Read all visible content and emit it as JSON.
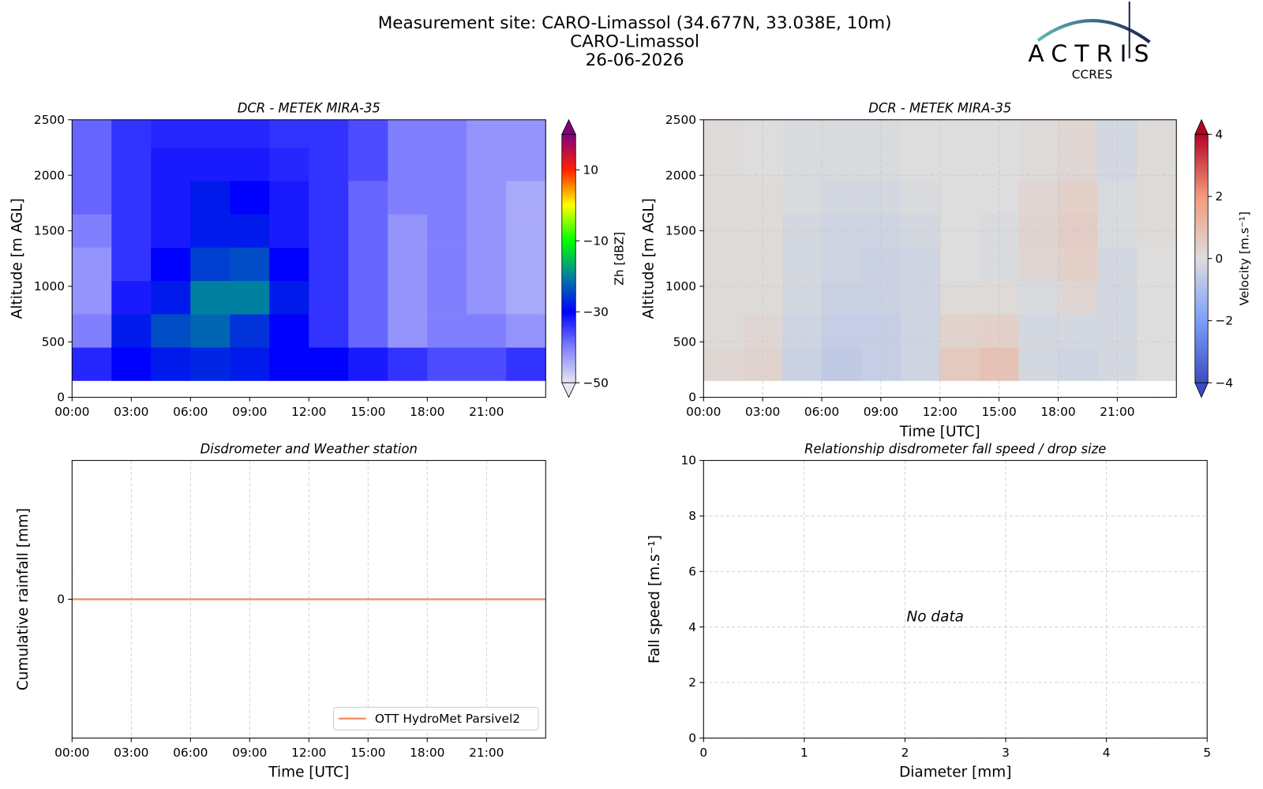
{
  "header": {
    "title_lines": [
      "Measurement site: CARO-Limassol (34.677N, 33.038E, 10m)",
      "CARO-Limassol",
      "26-06-2026"
    ],
    "logo": "ACTRIS",
    "logo_subtitle": "CCRES"
  },
  "chart_data": [
    {
      "type": "heatmap",
      "title": "DCR - METEK MIRA-35",
      "y_label": "Altitude [m AGL]",
      "colorbar_label": "Zh [dBZ]",
      "x_bins": [
        0,
        2,
        4,
        6,
        8,
        10,
        12,
        14,
        16,
        18,
        20,
        22,
        24
      ],
      "y_bins": [
        150,
        450,
        750,
        1050,
        1350,
        1650,
        1950,
        2250,
        2500
      ],
      "values": [
        [
          -33,
          -30,
          -28,
          -27,
          -28,
          -30,
          -30,
          -32,
          -34,
          -36,
          -36,
          -34
        ],
        [
          -40,
          -28,
          -24,
          -22,
          -26,
          -30,
          -34,
          -38,
          -42,
          -40,
          -40,
          -42
        ],
        [
          -42,
          -32,
          -28,
          -20,
          -20,
          -28,
          -34,
          -38,
          -42,
          -40,
          -42,
          -44
        ],
        [
          -42,
          -34,
          -30,
          -25,
          -24,
          -30,
          -34,
          -38,
          -42,
          -40,
          -42,
          -44
        ],
        [
          -40,
          -34,
          -32,
          -28,
          -28,
          -32,
          -34,
          -38,
          -42,
          -40,
          -42,
          -44
        ],
        [
          -38,
          -34,
          -32,
          -28,
          -30,
          -32,
          -34,
          -38,
          -40,
          -40,
          -42,
          -44
        ],
        [
          -38,
          -34,
          -32,
          -32,
          -32,
          -33,
          -34,
          -36,
          -40,
          -40,
          -42,
          -42
        ],
        [
          -38,
          -34,
          -33,
          -33,
          -33,
          -34,
          -34,
          -36,
          -40,
          -40,
          -42,
          -42
        ]
      ],
      "xlim": [
        0,
        24
      ],
      "ylim": [
        0,
        2500
      ],
      "xticks": [
        {
          "value": 0,
          "label": "00:00"
        },
        {
          "value": 3,
          "label": "03:00"
        },
        {
          "value": 6,
          "label": "06:00"
        },
        {
          "value": 9,
          "label": "09:00"
        },
        {
          "value": 12,
          "label": "12:00"
        },
        {
          "value": 15,
          "label": "15:00"
        },
        {
          "value": 18,
          "label": "18:00"
        },
        {
          "value": 21,
          "label": "21:00"
        }
      ],
      "yticks": [
        0,
        500,
        1000,
        1500,
        2000,
        2500
      ],
      "zlim": [
        -50,
        20
      ],
      "zticks": [
        {
          "value": -50,
          "label": "−50"
        },
        {
          "value": -30,
          "label": "−30"
        },
        {
          "value": -10,
          "label": "−10"
        },
        10
      ],
      "colormap": [
        "#e6e6f0",
        "#8080ff",
        "#0000ff",
        "#0080a0",
        "#00ff00",
        "#ffff00",
        "#ff2000",
        "#800080"
      ],
      "grid": false
    },
    {
      "type": "heatmap",
      "title": "DCR - METEK MIRA-35",
      "x_label": "Time [UTC]",
      "y_label": "Altitude [m AGL]",
      "colorbar_label": "Velocity [m.s⁻¹]",
      "x_bins": [
        0,
        2,
        4,
        6,
        8,
        10,
        12,
        14,
        16,
        18,
        20,
        22,
        24
      ],
      "y_bins": [
        150,
        450,
        750,
        1050,
        1350,
        1650,
        1950,
        2250,
        2500
      ],
      "values": [
        [
          0.2,
          0.3,
          -0.4,
          -0.6,
          -0.5,
          -0.3,
          0.6,
          0.8,
          -0.2,
          -0.3,
          -0.2,
          0.0
        ],
        [
          0.1,
          0.2,
          -0.3,
          -0.5,
          -0.5,
          -0.3,
          0.3,
          0.4,
          -0.2,
          -0.2,
          -0.2,
          0.0
        ],
        [
          0.1,
          0.1,
          -0.2,
          -0.4,
          -0.4,
          -0.3,
          0.1,
          0.1,
          -0.1,
          0.2,
          -0.2,
          0.0
        ],
        [
          0.1,
          0.1,
          -0.2,
          -0.3,
          -0.4,
          -0.3,
          0.0,
          -0.1,
          0.2,
          0.4,
          -0.2,
          0.0
        ],
        [
          0.1,
          0.1,
          -0.2,
          -0.3,
          -0.3,
          -0.2,
          0.0,
          -0.1,
          0.3,
          0.5,
          -0.1,
          0.1
        ],
        [
          0.1,
          0.1,
          -0.1,
          -0.2,
          -0.2,
          -0.1,
          0.0,
          0.0,
          0.2,
          0.4,
          -0.1,
          0.1
        ],
        [
          0.1,
          0.0,
          -0.1,
          -0.1,
          -0.1,
          0.0,
          0.0,
          0.0,
          0.1,
          0.2,
          -0.2,
          0.1
        ],
        [
          0.1,
          0.0,
          -0.1,
          -0.1,
          -0.1,
          0.0,
          0.0,
          0.0,
          0.1,
          0.2,
          -0.2,
          0.1
        ]
      ],
      "xlim": [
        0,
        24
      ],
      "ylim": [
        0,
        2500
      ],
      "xticks": [
        {
          "value": 0,
          "label": "00:00"
        },
        {
          "value": 3,
          "label": "03:00"
        },
        {
          "value": 6,
          "label": "06:00"
        },
        {
          "value": 9,
          "label": "09:00"
        },
        {
          "value": 12,
          "label": "12:00"
        },
        {
          "value": 15,
          "label": "15:00"
        },
        {
          "value": 18,
          "label": "18:00"
        },
        {
          "value": 21,
          "label": "21:00"
        }
      ],
      "yticks": [
        0,
        500,
        1000,
        1500,
        2000,
        2500
      ],
      "zlim": [
        -4,
        4
      ],
      "zticks": [
        {
          "value": -4,
          "label": "−4"
        },
        {
          "value": -2,
          "label": "−2"
        },
        0,
        2,
        4
      ],
      "colormap": [
        "#3b4cc0",
        "#7b9ff9",
        "#dddddd",
        "#f49a7b",
        "#b40426"
      ],
      "grid": true
    },
    {
      "type": "line",
      "title": "Disdrometer and Weather station",
      "x_label": "Time [UTC]",
      "y_label": "Cumulative rainfall [mm]",
      "x": [
        0,
        24
      ],
      "series": [
        {
          "name": "OTT HydroMet Parsivel2",
          "color": "#f08a5d",
          "values": [
            0,
            0
          ]
        }
      ],
      "xlim": [
        0,
        24
      ],
      "ylim": [
        -1,
        1
      ],
      "xticks": [
        {
          "value": 0,
          "label": "00:00"
        },
        {
          "value": 3,
          "label": "03:00"
        },
        {
          "value": 6,
          "label": "06:00"
        },
        {
          "value": 9,
          "label": "09:00"
        },
        {
          "value": 12,
          "label": "12:00"
        },
        {
          "value": 15,
          "label": "15:00"
        },
        {
          "value": 18,
          "label": "18:00"
        },
        {
          "value": 21,
          "label": "21:00"
        }
      ],
      "yticks": [
        0
      ],
      "grid": true,
      "legend": "lower right"
    },
    {
      "type": "scatter",
      "title": "Relationship disdrometer fall speed / drop size",
      "x_label": "Diameter [mm]",
      "y_label": "Fall speed [m.s⁻¹]",
      "annotation": "No data",
      "x": [],
      "values": [],
      "xlim": [
        0,
        5
      ],
      "ylim": [
        0,
        10
      ],
      "xticks": [
        0,
        1,
        2,
        3,
        4,
        5
      ],
      "yticks": [
        0,
        2,
        4,
        6,
        8,
        10
      ],
      "grid": true
    }
  ]
}
